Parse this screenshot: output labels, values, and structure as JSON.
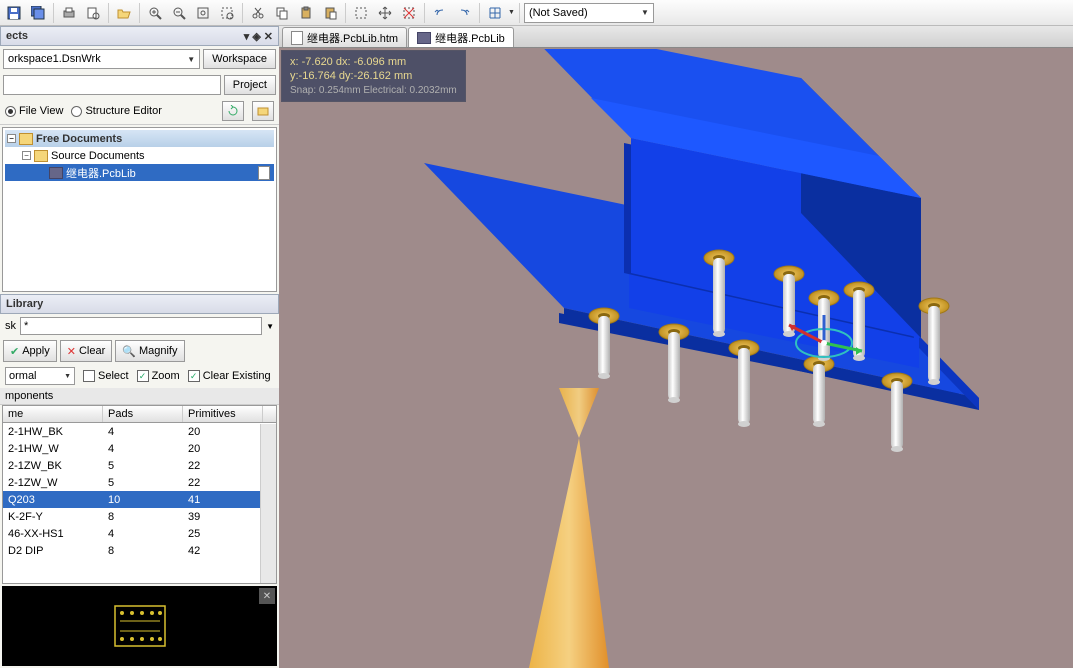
{
  "toolbar": {
    "save_state": "(Not Saved)"
  },
  "projects": {
    "panel_title": "ects",
    "workspace": "orkspace1.DsnWrk",
    "workspace_btn": "Workspace",
    "project_btn": "Project",
    "file_view": "File View",
    "structure_editor": "Structure Editor",
    "tree": {
      "root": "Free Documents",
      "source": "Source Documents",
      "file": "继电器.PcbLib"
    }
  },
  "library": {
    "panel_title": "Library",
    "mask_label": "sk",
    "mask_value": "*",
    "apply": "Apply",
    "clear": "Clear",
    "magnify": "Magnify",
    "mode": "ormal",
    "select": "Select",
    "zoom": "Zoom",
    "clear_existing": "Clear Existing",
    "components_header": "mponents",
    "columns": {
      "name": "me",
      "pads": "Pads",
      "primitives": "Primitives"
    },
    "rows": [
      {
        "name": "2-1HW_BK",
        "pads": "4",
        "prim": "20"
      },
      {
        "name": "2-1HW_W",
        "pads": "4",
        "prim": "20"
      },
      {
        "name": "2-1ZW_BK",
        "pads": "5",
        "prim": "22"
      },
      {
        "name": "2-1ZW_W",
        "pads": "5",
        "prim": "22"
      },
      {
        "name": "Q203",
        "pads": "10",
        "prim": "41",
        "selected": true
      },
      {
        "name": "K-2F-Y",
        "pads": "8",
        "prim": "39"
      },
      {
        "name": "46-XX-HS1",
        "pads": "4",
        "prim": "25"
      },
      {
        "name": "D2 DIP",
        "pads": "8",
        "prim": "42"
      }
    ]
  },
  "tabs": [
    {
      "label": "继电器.PcbLib.htm",
      "active": false
    },
    {
      "label": "继电器.PcbLib",
      "active": true
    }
  ],
  "coords": {
    "line1": "x: -7.620    dx: -6.096  mm",
    "line2": "y:-16.764   dy:-26.162  mm",
    "snap": "Snap: 0.254mm Electrical: 0.2032mm"
  },
  "scene": {
    "bg": "#9f8b8b",
    "pcb_top": "#0b3fd6",
    "pcb_side": "#0a2fa0",
    "body_top": "#1240e8",
    "body_side": "#0b2fb0",
    "pad": "#d8a830",
    "pin": "#e8e8e8",
    "cone1": "#f5b840",
    "cone2": "#e89020",
    "axis_x": "#d03030",
    "axis_y": "#30c050",
    "axis_circle": "#30c0c0"
  }
}
